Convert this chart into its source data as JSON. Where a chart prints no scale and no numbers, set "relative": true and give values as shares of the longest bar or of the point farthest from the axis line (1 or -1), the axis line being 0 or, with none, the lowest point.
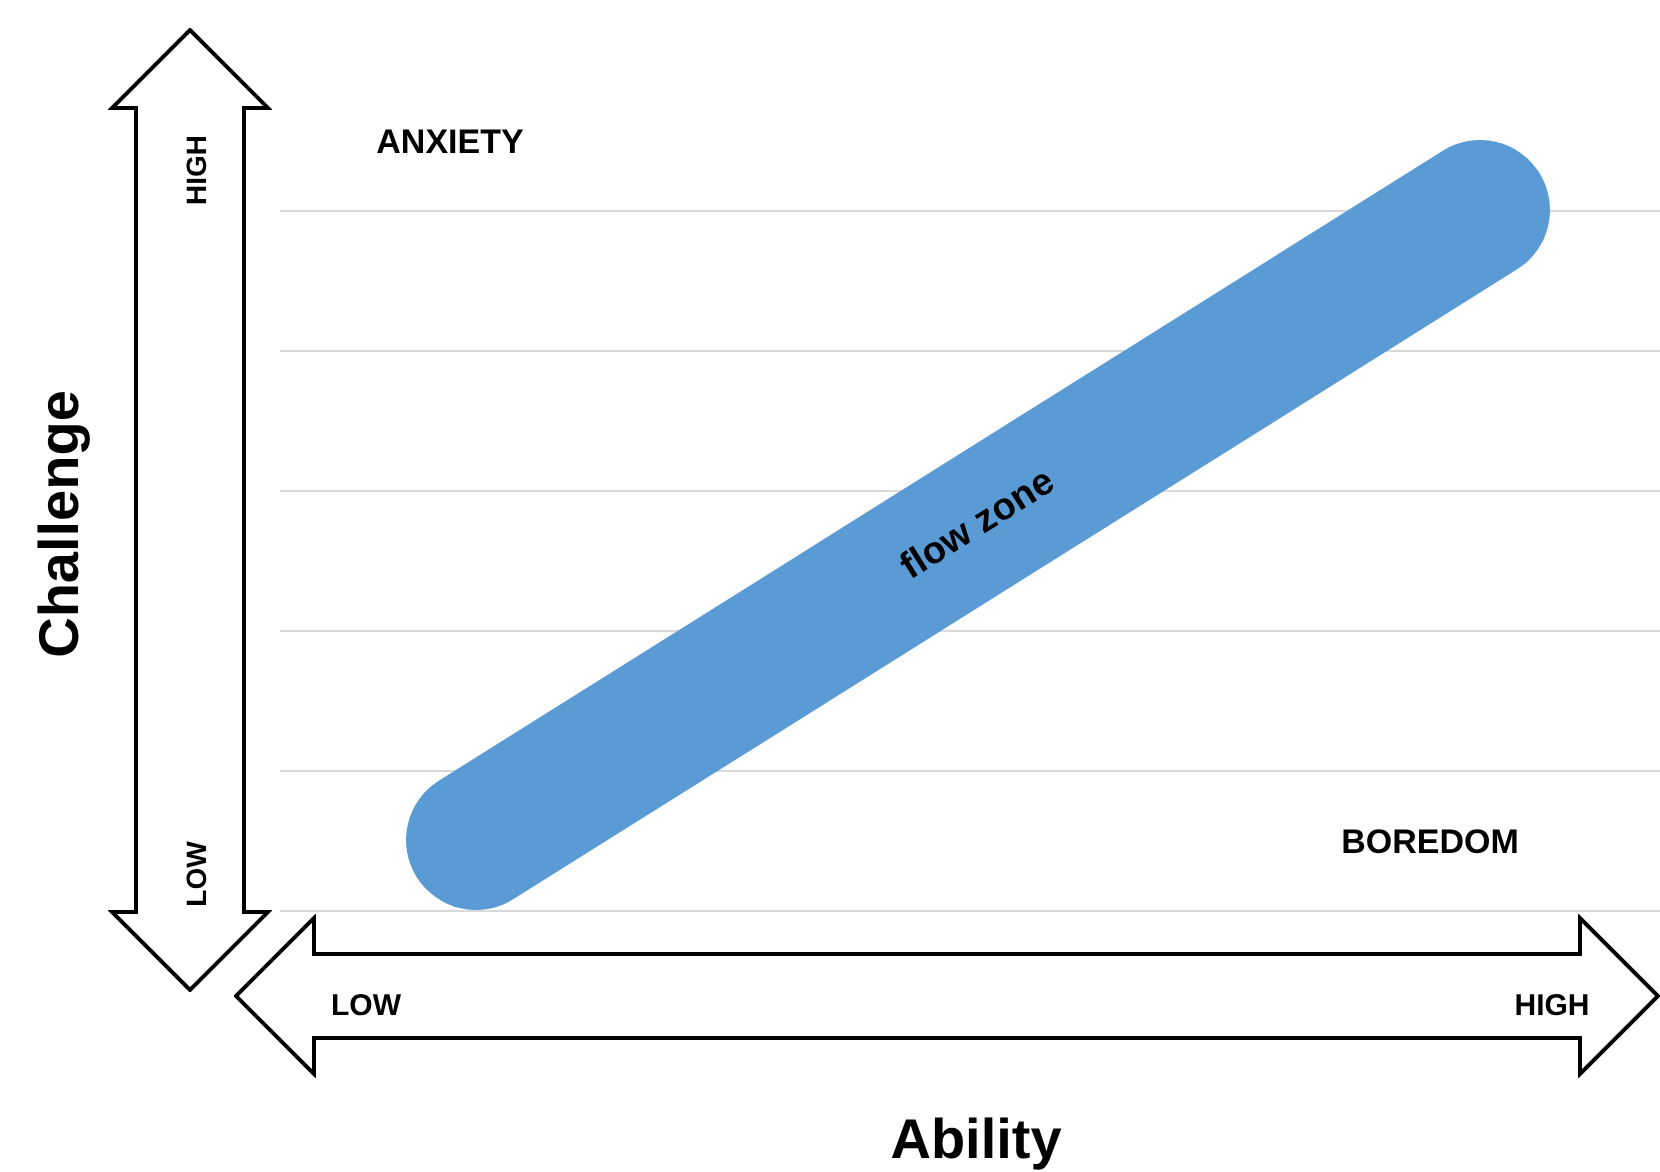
{
  "chart_data": {
    "type": "line",
    "xlabel": "Ability",
    "ylabel": "Challenge",
    "categories": [
      null,
      null
    ],
    "values": [
      0.1,
      1
    ],
    "color": "#5b9bd5",
    "relative": true,
    "marker": "none",
    "grid": "y",
    "annotations": [
      "ANXIETY",
      "BOREDOM",
      "flow zone",
      "HIGH",
      "LOW",
      "LOW",
      "HIGH"
    ]
  }
}
